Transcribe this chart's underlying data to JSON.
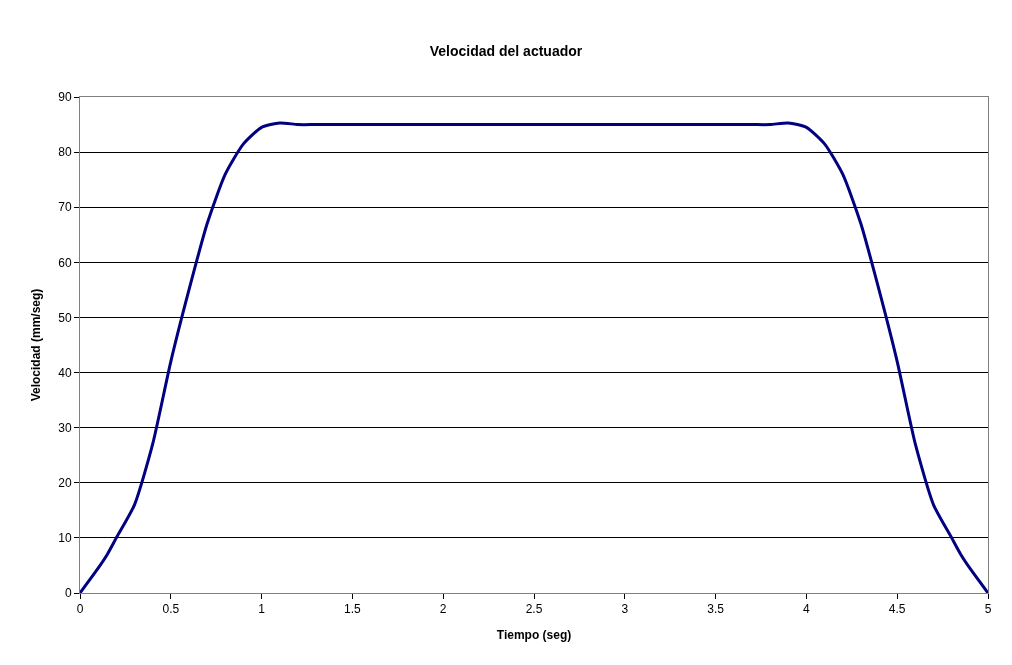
{
  "chart_data": {
    "type": "line",
    "title": "Velocidad del actuador",
    "xlabel": "Tiempo (seg)",
    "ylabel": "Velocidad (mm/seg)",
    "x": [
      0,
      0.1,
      0.15,
      0.2,
      0.3,
      0.4,
      0.5,
      0.6,
      0.7,
      0.8,
      0.9,
      1.0,
      1.1,
      1.2,
      1.3,
      1.5,
      2.0,
      2.5,
      3.0,
      3.5,
      3.7,
      3.8,
      3.9,
      4.0,
      4.1,
      4.2,
      4.3,
      4.4,
      4.5,
      4.6,
      4.7,
      4.8,
      4.85,
      4.9,
      5.0
    ],
    "series": [
      {
        "color": "#000080",
        "values": [
          0,
          4.5,
          7,
          10,
          16,
          27,
          42,
          55,
          67,
          76,
          81.5,
          84.5,
          85.3,
          85,
          85,
          85,
          85,
          85,
          85,
          85,
          85,
          85,
          85.3,
          84.5,
          81.5,
          76,
          67,
          55,
          42,
          27,
          16,
          10,
          7,
          4.5,
          0
        ]
      }
    ],
    "xlim": [
      0,
      5
    ],
    "xticks": [
      0,
      0.5,
      1,
      1.5,
      2,
      2.5,
      3,
      3.5,
      4,
      4.5,
      5
    ],
    "ylim": [
      0,
      90
    ],
    "yticks": [
      0,
      10,
      20,
      30,
      40,
      50,
      60,
      70,
      80,
      90
    ],
    "grid": "y",
    "legend": false,
    "marker": "none",
    "line_style": "solid"
  }
}
